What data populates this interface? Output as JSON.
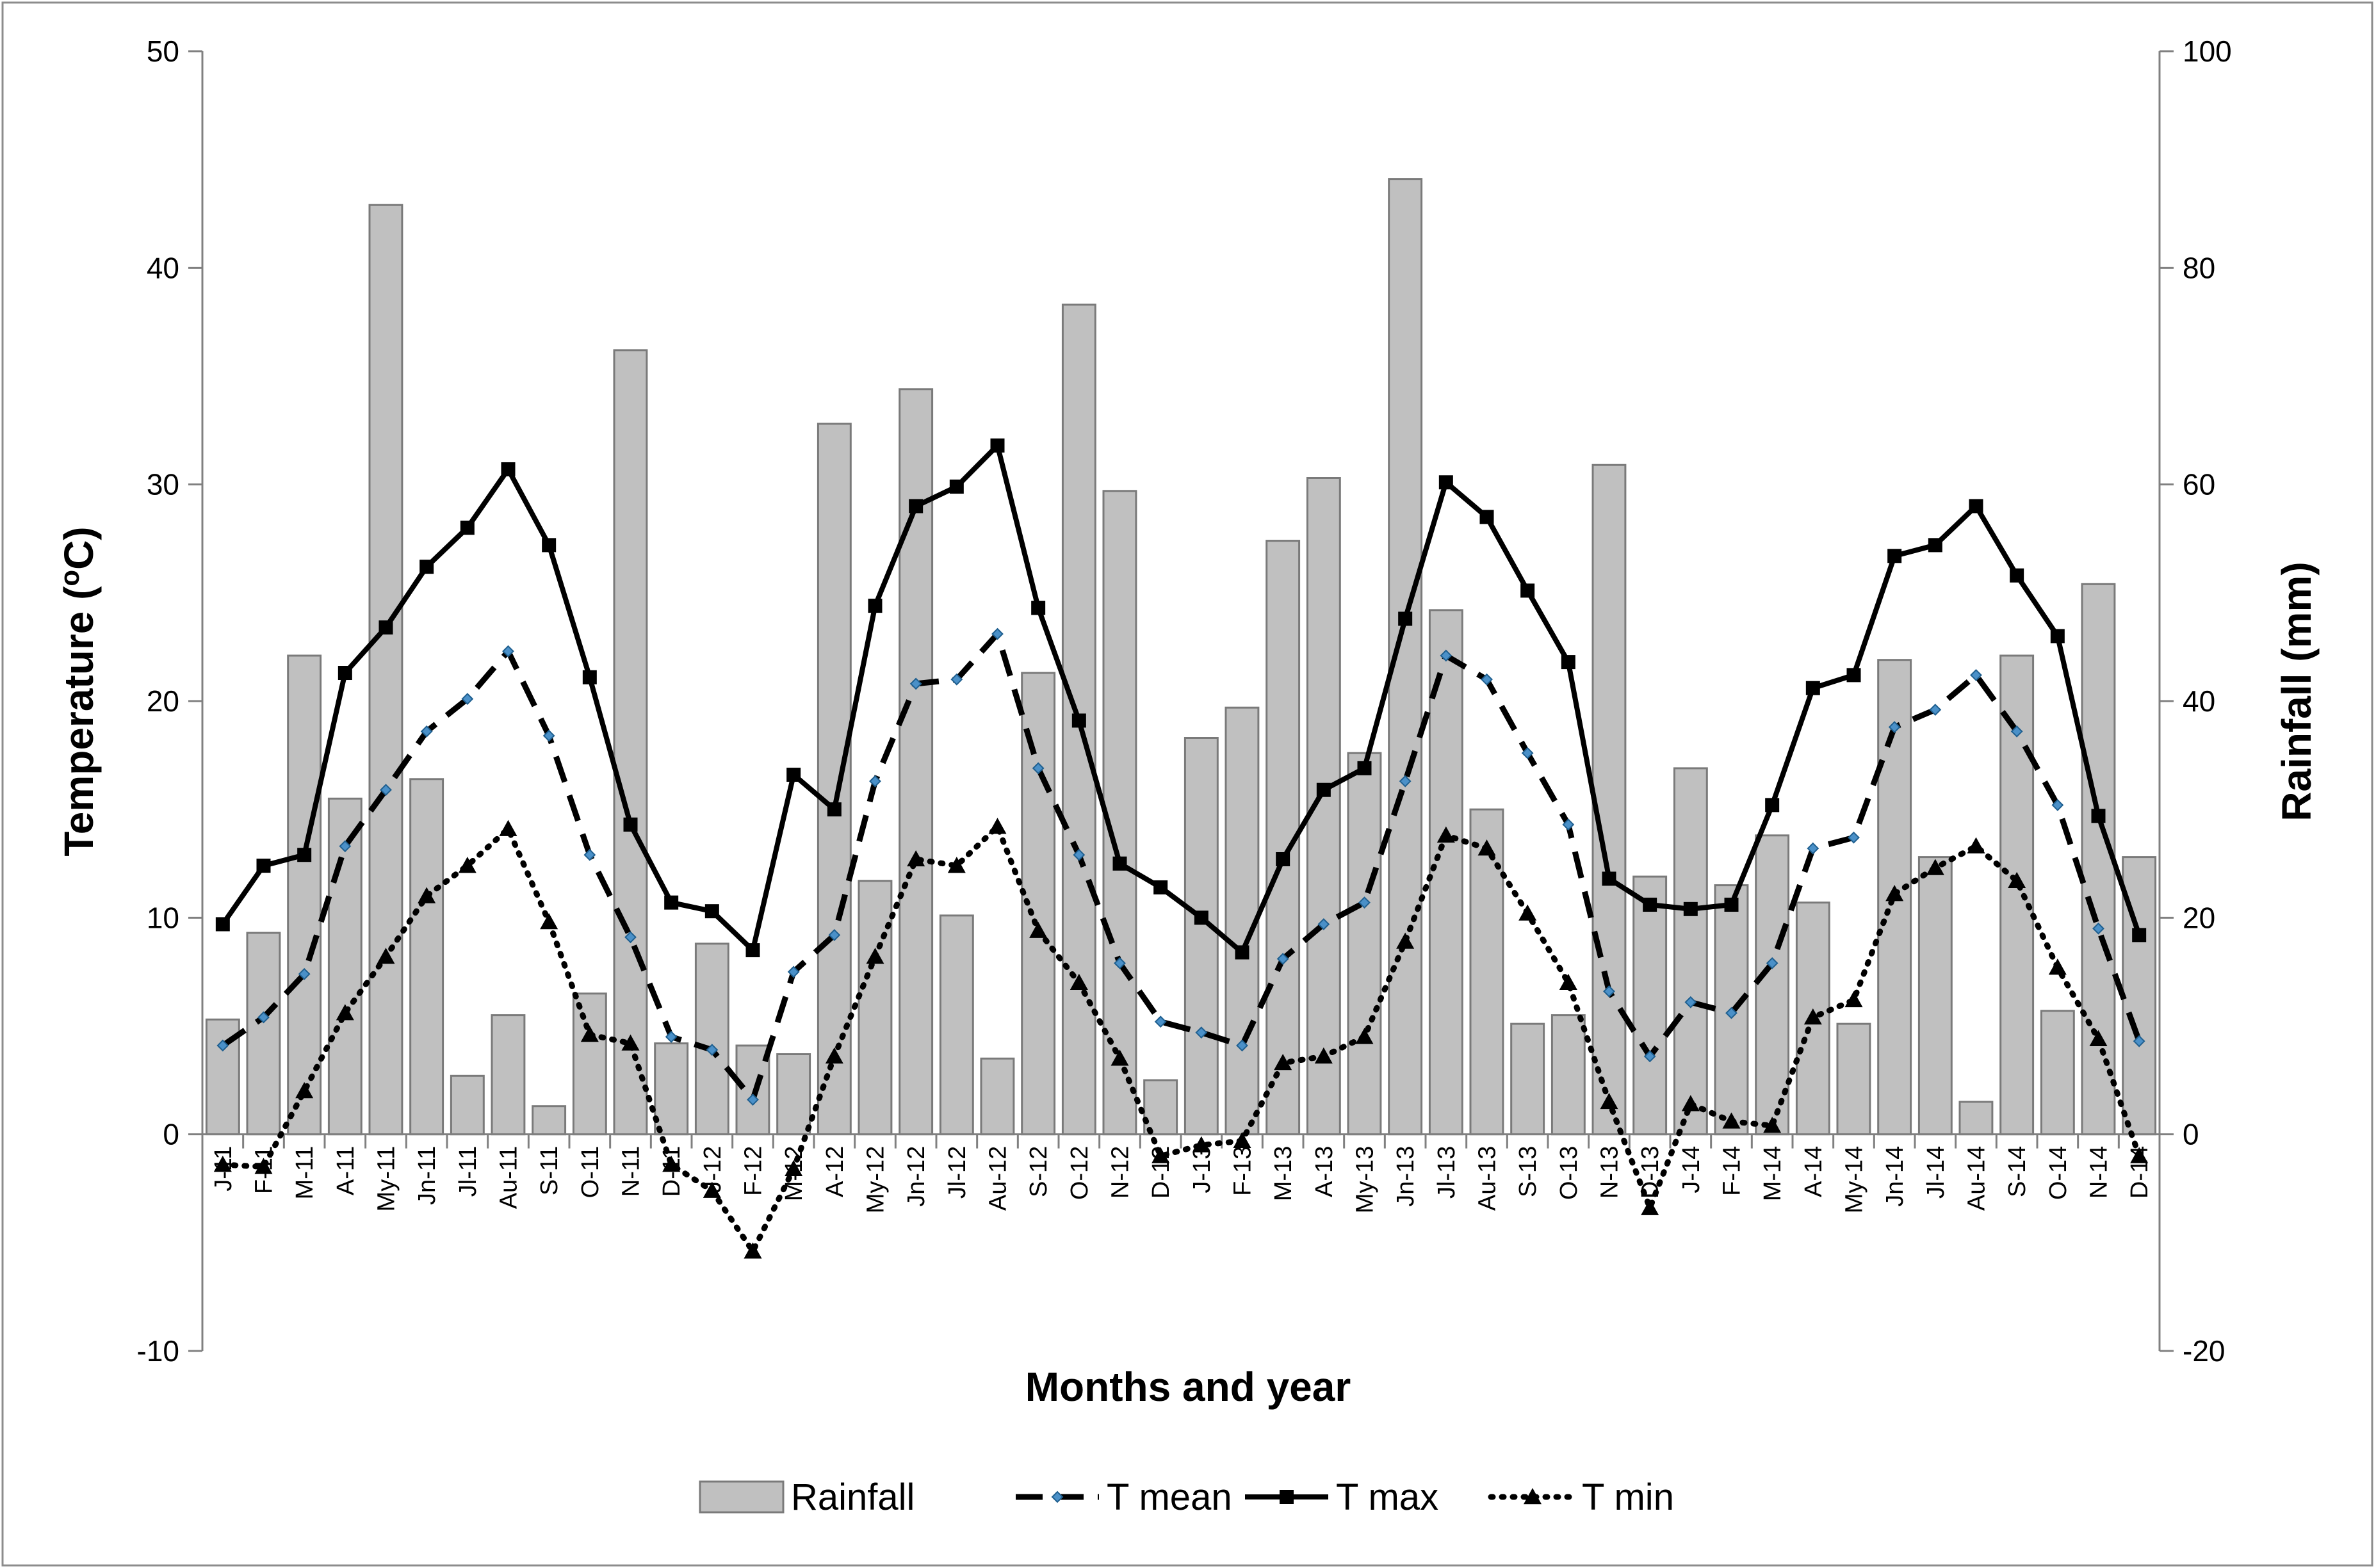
{
  "chart_data": {
    "type": "bar+line",
    "title": "",
    "xlabel": "Months and year",
    "ylabel": "Temperature (°C)",
    "ylabel_parts": {
      "before": "Temperature (",
      "sup": "o",
      "after": "C)"
    },
    "y2label": "Rainfall (mm)",
    "ylim": [
      -10,
      50
    ],
    "y2lim": [
      -20,
      100
    ],
    "yticks": [
      "-10",
      "0",
      "10",
      "20",
      "30",
      "40",
      "50"
    ],
    "y2ticks": [
      "-20",
      "0",
      "20",
      "40",
      "60",
      "80",
      "100"
    ],
    "categories": [
      "J-11",
      "F-11",
      "M-11",
      "A-11",
      "My-11",
      "Jn-11",
      "Jl-11",
      "Au-11",
      "S-11",
      "O-11",
      "N-11",
      "D-11",
      "J-12",
      "F-12",
      "M-12",
      "A-12",
      "My-12",
      "Jn-12",
      "Jl-12",
      "Au-12",
      "S-12",
      "O-12",
      "N-12",
      "D-12",
      "J-13",
      "F-13",
      "M-13",
      "A-13",
      "My-13",
      "Jn-13",
      "Jl-13",
      "Au-13",
      "S-13",
      "O-13",
      "N-13",
      "D-13",
      "J-14",
      "F-14",
      "M-14",
      "A-14",
      "My-14",
      "Jn-14",
      "Jl-14",
      "Au-14",
      "S-14",
      "O-14",
      "N-14",
      "D-14"
    ],
    "series": [
      {
        "name": "Rainfall",
        "type": "bar",
        "axis": "right",
        "color": "#c0c0c0",
        "values": [
          10.6,
          18.6,
          44.2,
          31.0,
          85.8,
          32.8,
          5.4,
          11.0,
          2.6,
          13.0,
          72.4,
          8.4,
          17.6,
          8.2,
          7.4,
          65.6,
          23.4,
          68.8,
          20.2,
          7.0,
          42.6,
          76.6,
          59.4,
          5.0,
          36.6,
          39.4,
          54.8,
          60.6,
          35.2,
          88.2,
          48.4,
          30.0,
          10.2,
          11.0,
          61.8,
          23.8,
          33.8,
          23.0,
          27.6,
          21.4,
          10.2,
          43.8,
          25.6,
          3.0,
          44.2,
          11.4,
          50.8,
          25.6
        ]
      },
      {
        "name": "T mean",
        "type": "line",
        "axis": "left",
        "style": "dashed",
        "marker": "diamond",
        "color": "#000000",
        "marker_color": "#4a90c8",
        "values": [
          4.1,
          5.4,
          7.4,
          13.3,
          15.9,
          18.6,
          20.1,
          22.3,
          18.4,
          12.9,
          9.1,
          4.5,
          3.9,
          1.6,
          7.5,
          9.2,
          16.3,
          20.8,
          21.0,
          23.1,
          16.9,
          12.9,
          7.9,
          5.2,
          4.7,
          4.1,
          8.1,
          9.7,
          10.7,
          16.3,
          22.1,
          21.0,
          17.6,
          14.3,
          6.6,
          3.6,
          6.1,
          5.6,
          7.9,
          13.2,
          13.7,
          18.8,
          19.6,
          21.2,
          18.6,
          15.2,
          9.5,
          4.3
        ]
      },
      {
        "name": "T max",
        "type": "line",
        "axis": "left",
        "style": "solid",
        "marker": "square",
        "color": "#000000",
        "values": [
          9.7,
          12.4,
          12.9,
          21.3,
          23.4,
          26.2,
          28.0,
          30.7,
          27.2,
          21.1,
          14.3,
          10.7,
          10.3,
          8.5,
          16.6,
          15.0,
          24.4,
          29.0,
          29.9,
          31.8,
          24.3,
          19.1,
          12.5,
          11.4,
          10.0,
          8.4,
          12.7,
          15.9,
          16.9,
          23.8,
          30.1,
          28.5,
          25.1,
          21.8,
          11.8,
          10.6,
          10.4,
          10.6,
          15.2,
          20.6,
          21.2,
          26.7,
          27.2,
          29.0,
          25.8,
          23.0,
          14.7,
          9.2
        ]
      },
      {
        "name": "T min",
        "type": "line",
        "axis": "left",
        "style": "dotted",
        "marker": "triangle",
        "color": "#000000",
        "values": [
          -1.4,
          -1.5,
          2.0,
          5.6,
          8.2,
          11.0,
          12.4,
          14.1,
          9.8,
          4.6,
          4.2,
          -1.4,
          -2.6,
          -5.4,
          -1.6,
          3.6,
          8.2,
          12.7,
          12.4,
          14.2,
          9.4,
          7.0,
          3.5,
          -1.0,
          -0.5,
          -0.3,
          3.3,
          3.6,
          4.5,
          8.9,
          13.8,
          13.2,
          10.2,
          7.0,
          1.5,
          -3.4,
          1.4,
          0.6,
          0.4,
          5.4,
          6.2,
          11.1,
          12.3,
          13.3,
          11.7,
          7.7,
          4.4,
          -1.0
        ]
      }
    ],
    "legend": [
      "Rainfall",
      "T mean",
      "T max",
      "T min"
    ],
    "legend_position": "bottom-center",
    "grid": false
  }
}
